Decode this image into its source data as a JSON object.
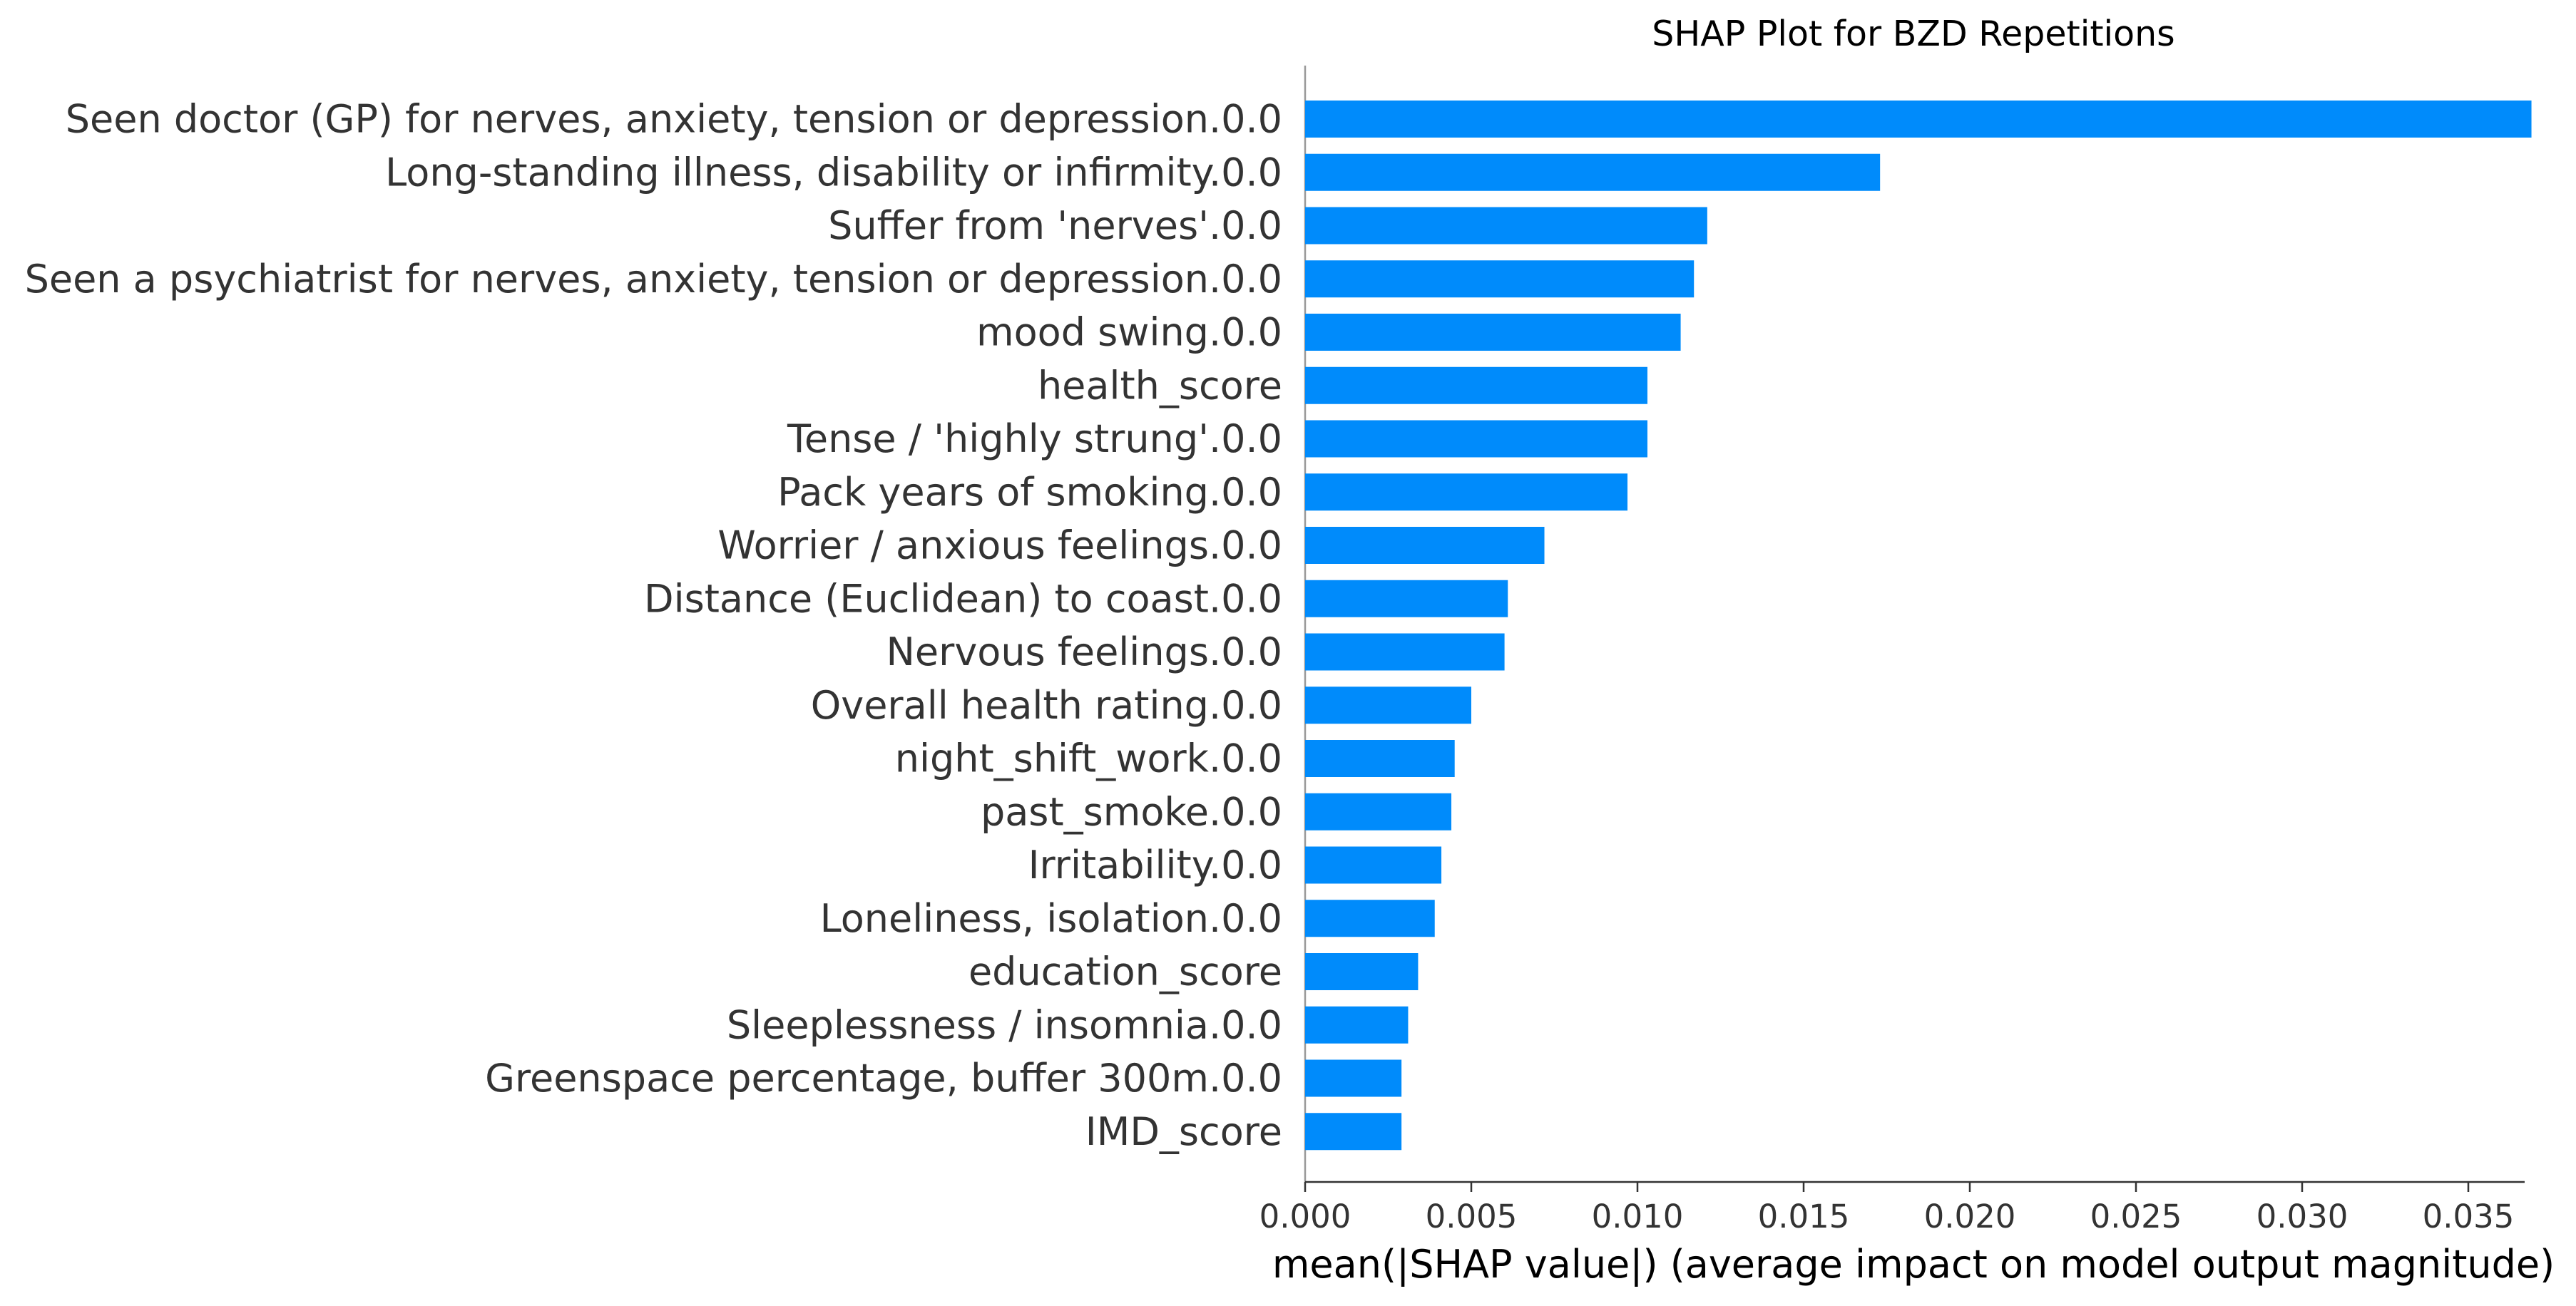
{
  "chart_data": {
    "type": "bar",
    "orientation": "horizontal",
    "title": "SHAP Plot for BZD Repetitions",
    "xlabel": "mean(|SHAP value|) (average impact on model output magnitude)",
    "ylabel": "",
    "xlim": [
      0,
      0.0385
    ],
    "xticks": [
      0.0,
      0.005,
      0.01,
      0.015,
      0.02,
      0.025,
      0.03,
      0.035
    ],
    "xtick_labels": [
      "0.000",
      "0.005",
      "0.010",
      "0.015",
      "0.020",
      "0.025",
      "0.030",
      "0.035"
    ],
    "grid": false,
    "bar_color": "#008bfb",
    "categories": [
      "Seen doctor (GP) for nerves, anxiety, tension or depression.0.0",
      "Long-standing illness, disability or infirmity.0.0",
      "Suffer from 'nerves'.0.0",
      "Seen a psychiatrist for nerves, anxiety, tension or depression.0.0",
      "mood swing.0.0",
      "health_score",
      "Tense / 'highly strung'.0.0",
      "Pack years of smoking.0.0",
      "Worrier / anxious feelings.0.0",
      "Distance (Euclidean) to coast.0.0",
      "Nervous feelings.0.0",
      "Overall health rating.0.0",
      "night_shift_work.0.0",
      "past_smoke.0.0",
      "Irritability.0.0",
      "Loneliness, isolation.0.0",
      "education_score",
      "Sleeplessness / insomnia.0.0",
      "Greenspace percentage, buffer 300m.0.0",
      "IMD_score"
    ],
    "values": [
      0.0369,
      0.0173,
      0.0121,
      0.0117,
      0.0113,
      0.0103,
      0.0103,
      0.0097,
      0.0072,
      0.0061,
      0.006,
      0.005,
      0.0045,
      0.0044,
      0.0041,
      0.0039,
      0.0034,
      0.0031,
      0.0029,
      0.0029
    ]
  }
}
